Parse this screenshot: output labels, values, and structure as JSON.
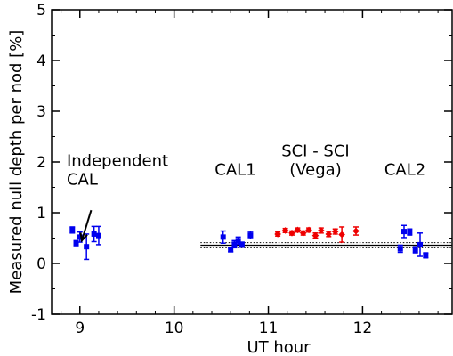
{
  "chart_data": {
    "type": "scatter",
    "xlabel": "UT hour",
    "ylabel": "Measured null depth per nod [%]",
    "xlim": [
      8.7,
      12.95
    ],
    "ylim": [
      -1,
      5
    ],
    "xticks": [
      9,
      10,
      11,
      12
    ],
    "yticks": [
      -1,
      0,
      1,
      2,
      3,
      4,
      5
    ],
    "grid": false,
    "colors": {
      "calibrator": "#0000ee",
      "science": "#ee0000",
      "reference": "#000000"
    },
    "annotations": [
      {
        "lines": [
          "Independent",
          "CAL"
        ],
        "at": [
          9.05,
          1.55
        ],
        "arrow_to": [
          9.02,
          0.45
        ]
      },
      {
        "lines": [
          "CAL1"
        ],
        "at": [
          10.65,
          1.75
        ]
      },
      {
        "lines": [
          "SCI - SCI",
          "(Vega)"
        ],
        "at": [
          11.5,
          1.75
        ]
      },
      {
        "lines": [
          "CAL2"
        ],
        "at": [
          12.45,
          1.75
        ]
      }
    ],
    "reference_lines": [
      {
        "y": 0.36,
        "style": "solid",
        "x": [
          10.28,
          12.95
        ]
      },
      {
        "y": 0.41,
        "style": "dotted",
        "x": [
          10.28,
          12.95
        ]
      },
      {
        "y": 0.31,
        "style": "dotted",
        "x": [
          10.28,
          12.95
        ]
      }
    ],
    "series": [
      {
        "group": "independent-cal",
        "marker": "square",
        "points": [
          {
            "x": 8.92,
            "y": 0.66,
            "err": 0.06
          },
          {
            "x": 8.96,
            "y": 0.4,
            "err": 0.05
          },
          {
            "x": 9.0,
            "y": 0.52,
            "err": 0.1
          },
          {
            "x": 9.07,
            "y": 0.33,
            "err": 0.25
          },
          {
            "x": 9.15,
            "y": 0.58,
            "err": 0.15
          },
          {
            "x": 9.2,
            "y": 0.55,
            "err": 0.18
          }
        ]
      },
      {
        "group": "cal1",
        "marker": "square",
        "points": [
          {
            "x": 10.52,
            "y": 0.52,
            "err": 0.12
          },
          {
            "x": 10.6,
            "y": 0.27,
            "err": 0.04
          },
          {
            "x": 10.64,
            "y": 0.38,
            "err": 0.07
          },
          {
            "x": 10.68,
            "y": 0.45,
            "err": 0.07
          },
          {
            "x": 10.72,
            "y": 0.37,
            "err": 0.05
          },
          {
            "x": 10.81,
            "y": 0.56,
            "err": 0.07
          }
        ]
      },
      {
        "group": "sci",
        "marker": "diamond",
        "points": [
          {
            "x": 11.1,
            "y": 0.58,
            "err": 0.04
          },
          {
            "x": 11.18,
            "y": 0.65,
            "err": 0.04
          },
          {
            "x": 11.25,
            "y": 0.6,
            "err": 0.04
          },
          {
            "x": 11.31,
            "y": 0.66,
            "err": 0.04
          },
          {
            "x": 11.37,
            "y": 0.6,
            "err": 0.04
          },
          {
            "x": 11.43,
            "y": 0.66,
            "err": 0.04
          },
          {
            "x": 11.5,
            "y": 0.55,
            "err": 0.05
          },
          {
            "x": 11.56,
            "y": 0.65,
            "err": 0.05
          },
          {
            "x": 11.64,
            "y": 0.58,
            "err": 0.05
          },
          {
            "x": 11.71,
            "y": 0.63,
            "err": 0.05
          },
          {
            "x": 11.78,
            "y": 0.57,
            "err": 0.15
          },
          {
            "x": 11.93,
            "y": 0.64,
            "err": 0.08
          }
        ]
      },
      {
        "group": "cal2",
        "marker": "square",
        "points": [
          {
            "x": 12.4,
            "y": 0.29,
            "err": 0.07
          },
          {
            "x": 12.44,
            "y": 0.63,
            "err": 0.12
          },
          {
            "x": 12.5,
            "y": 0.62,
            "err": 0.06
          },
          {
            "x": 12.56,
            "y": 0.27,
            "err": 0.06
          },
          {
            "x": 12.61,
            "y": 0.37,
            "err": 0.23
          },
          {
            "x": 12.67,
            "y": 0.16,
            "err": 0.05
          }
        ]
      }
    ]
  }
}
